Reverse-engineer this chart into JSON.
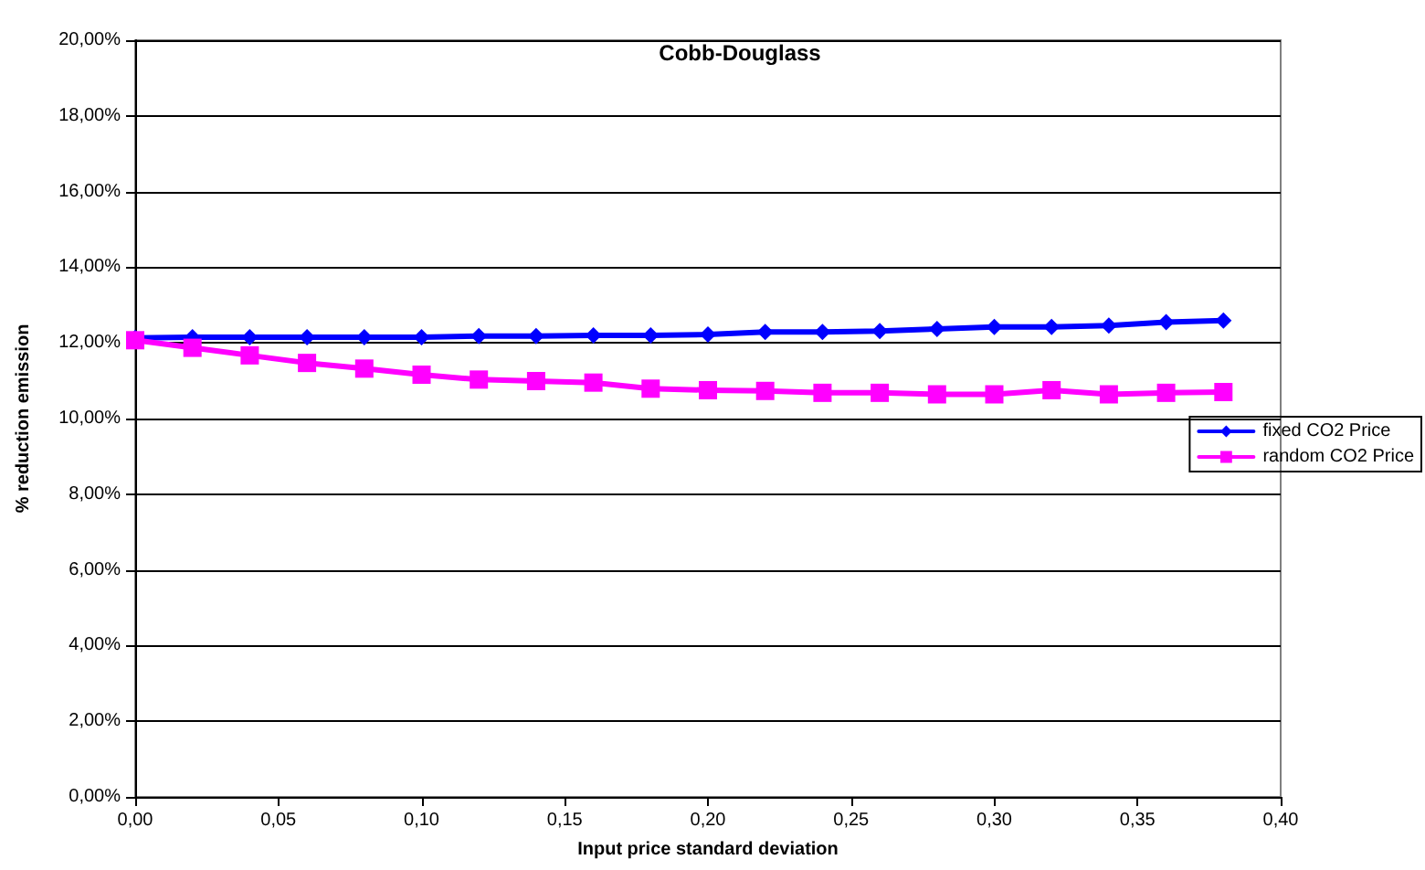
{
  "chart_data": {
    "type": "line",
    "title": "Cobb-Douglass",
    "xlabel": "Input price standard deviation",
    "ylabel": "% reduction emission",
    "x": [
      0,
      0.02,
      0.04,
      0.06,
      0.08,
      0.1,
      0.12,
      0.14,
      0.16,
      0.18,
      0.2,
      0.22,
      0.24,
      0.26,
      0.28,
      0.3,
      0.32,
      0.34,
      0.36,
      0.38
    ],
    "series": [
      {
        "name": "fixed CO2 Price",
        "color": "#0000ff",
        "marker": "diamond",
        "values": [
          12.13,
          12.15,
          12.15,
          12.15,
          12.15,
          12.15,
          12.18,
          12.18,
          12.2,
          12.2,
          12.22,
          12.29,
          12.29,
          12.31,
          12.37,
          12.42,
          12.42,
          12.46,
          12.55,
          12.59
        ]
      },
      {
        "name": "random CO2 Price",
        "color": "#ff00ff",
        "marker": "square",
        "values": [
          12.07,
          11.87,
          11.67,
          11.47,
          11.32,
          11.16,
          11.03,
          10.99,
          10.95,
          10.79,
          10.75,
          10.73,
          10.68,
          10.68,
          10.64,
          10.64,
          10.75,
          10.64,
          10.68,
          10.7
        ]
      }
    ],
    "xlim": [
      0,
      0.4
    ],
    "xticks": [
      {
        "value": 0,
        "label": "0,00"
      },
      {
        "value": 0.05,
        "label": "0,05"
      },
      {
        "value": 0.1,
        "label": "0,10"
      },
      {
        "value": 0.15,
        "label": "0,15"
      },
      {
        "value": 0.2,
        "label": "0,20"
      },
      {
        "value": 0.25,
        "label": "0,25"
      },
      {
        "value": 0.3,
        "label": "0,30"
      },
      {
        "value": 0.35,
        "label": "0,35"
      },
      {
        "value": 0.4,
        "label": "0,40"
      }
    ],
    "ylim": [
      0,
      20
    ],
    "yticks": [
      {
        "value": 0,
        "label": "0,00%"
      },
      {
        "value": 2,
        "label": "2,00%"
      },
      {
        "value": 4,
        "label": "4,00%"
      },
      {
        "value": 6,
        "label": "6,00%"
      },
      {
        "value": 8,
        "label": "8,00%"
      },
      {
        "value": 10,
        "label": "10,00%"
      },
      {
        "value": 12,
        "label": "12,00%"
      },
      {
        "value": 14,
        "label": "14,00%"
      },
      {
        "value": 16,
        "label": "16,00%"
      },
      {
        "value": 18,
        "label": "18,00%"
      },
      {
        "value": 20,
        "label": "20,00%"
      }
    ],
    "grid": "y",
    "legend": "right",
    "line_style": "solid"
  }
}
